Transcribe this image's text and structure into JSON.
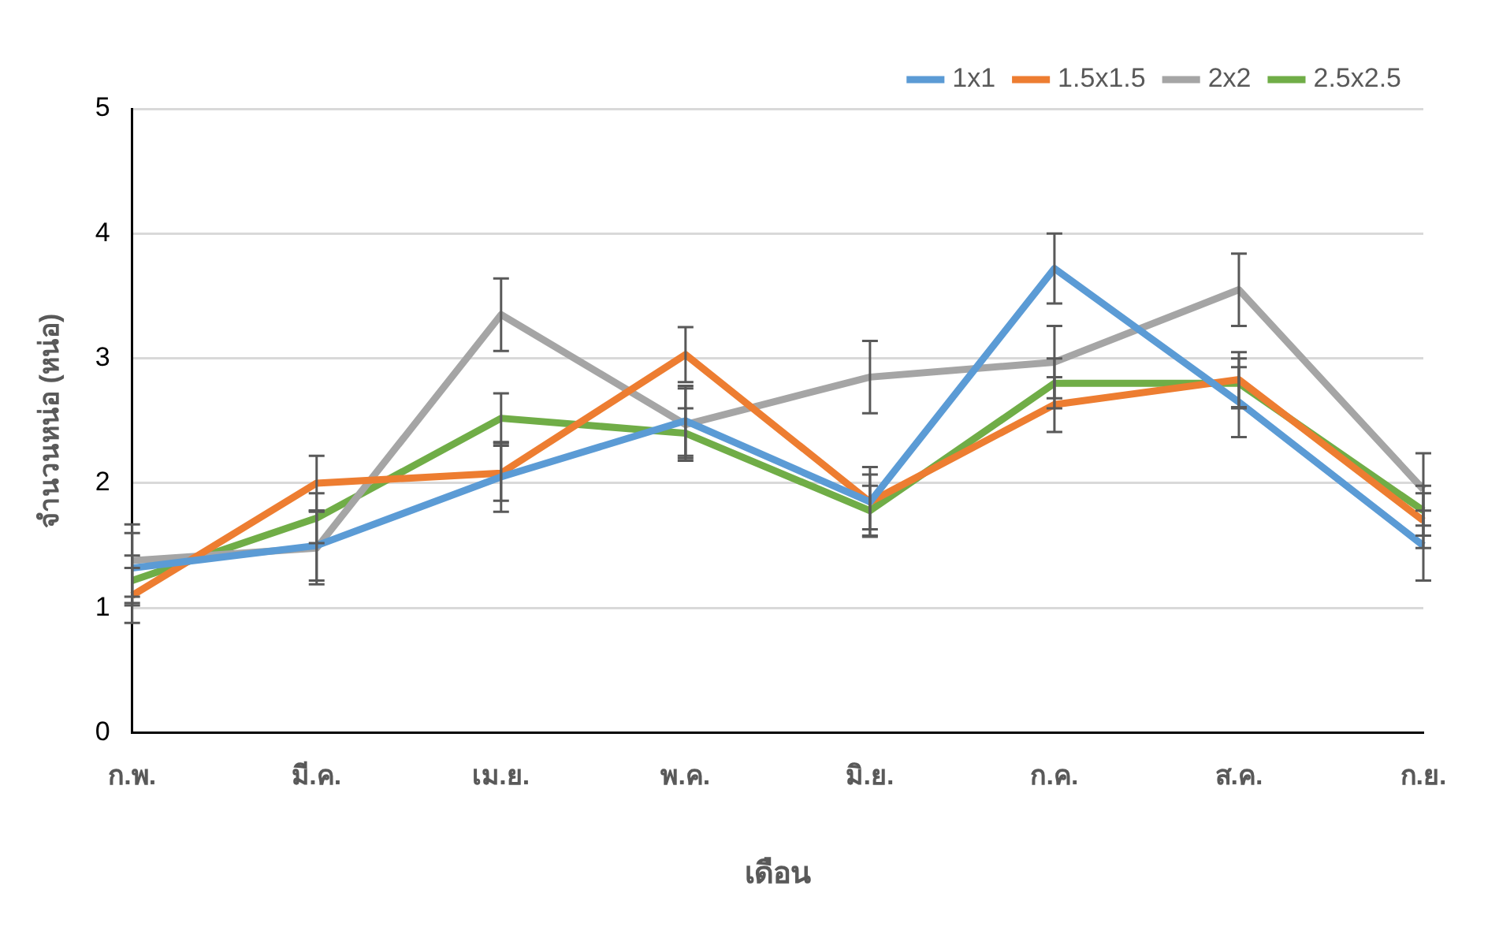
{
  "chart_data": {
    "type": "line",
    "xlabel": "เดือน",
    "ylabel": "จำนวนหน่อ (หน่อ)",
    "categories": [
      "ก.พ.",
      "มี.ค.",
      "เม.ย.",
      "พ.ค.",
      "มิ.ย.",
      "ก.ค.",
      "ส.ค.",
      "ก.ย."
    ],
    "series": [
      {
        "name": "1x1",
        "color": "#5b9bd5",
        "values": [
          1.32,
          1.5,
          2.05,
          2.5,
          1.85,
          3.72,
          2.65,
          1.5
        ],
        "errors": [
          0.28,
          0.28,
          0.28,
          0.28,
          0.28,
          0.28,
          0.28,
          0.28
        ]
      },
      {
        "name": "1.5x1.5",
        "color": "#ed7d31",
        "values": [
          1.1,
          2.0,
          2.08,
          3.03,
          1.85,
          2.63,
          2.83,
          1.7
        ],
        "errors": [
          0.22,
          0.22,
          0.22,
          0.22,
          0.22,
          0.22,
          0.22,
          0.22
        ]
      },
      {
        "name": "2x2",
        "color": "#a5a5a5",
        "values": [
          1.38,
          1.48,
          3.35,
          2.47,
          2.85,
          2.97,
          3.55,
          1.95
        ],
        "errors": [
          0.29,
          0.29,
          0.29,
          0.29,
          0.29,
          0.29,
          0.29,
          0.29
        ]
      },
      {
        "name": "2.5x2.5",
        "color": "#70ad47",
        "values": [
          1.22,
          1.72,
          2.52,
          2.4,
          1.78,
          2.8,
          2.8,
          1.78
        ],
        "errors": [
          0.2,
          0.2,
          0.2,
          0.2,
          0.2,
          0.2,
          0.2,
          0.2
        ]
      }
    ],
    "ylim": [
      0,
      5
    ],
    "yticks": [
      0,
      1,
      2,
      3,
      4,
      5
    ],
    "grid": "y",
    "legend": "top right",
    "marker": "none",
    "line_style": "solid"
  }
}
